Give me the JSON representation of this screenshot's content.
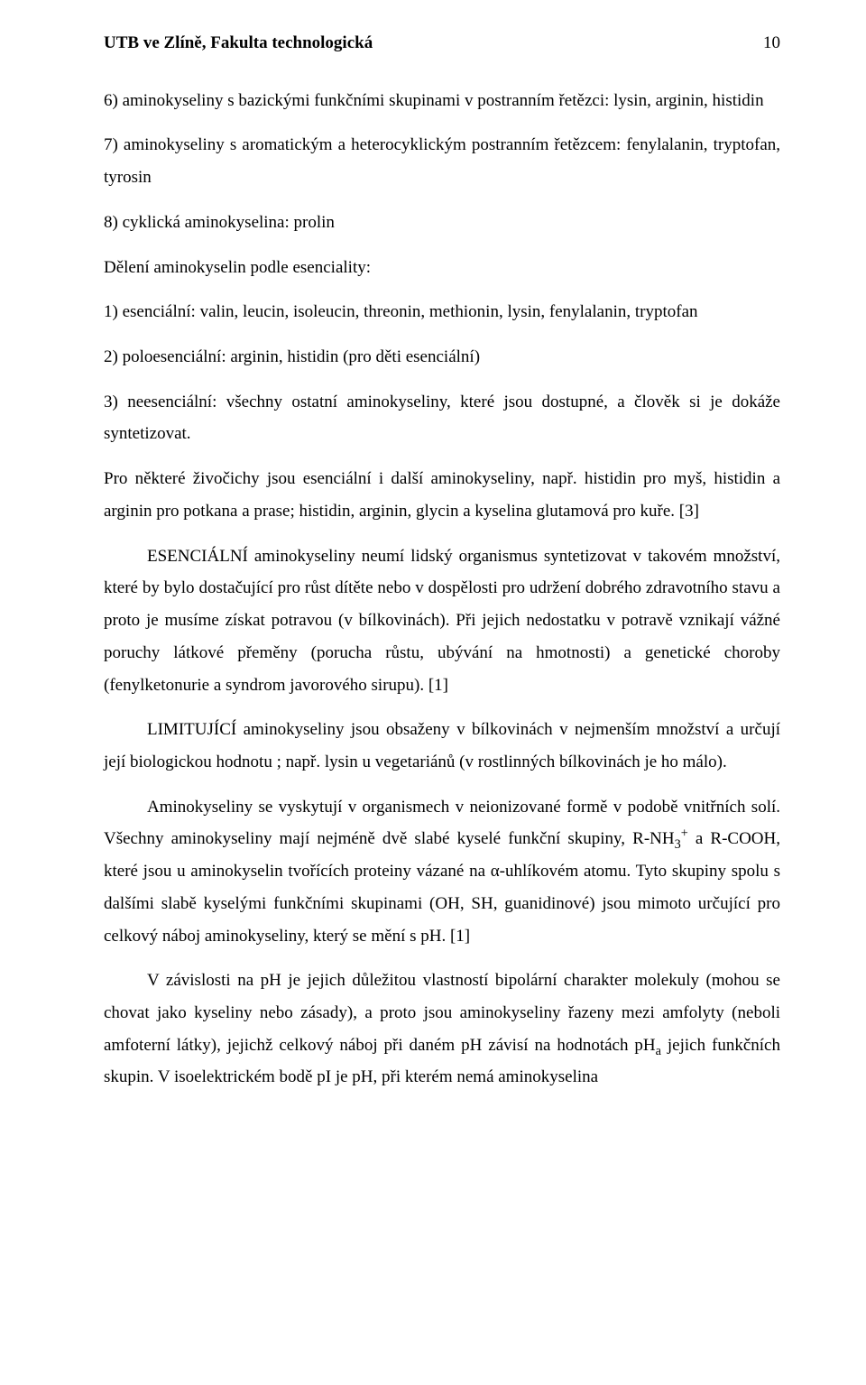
{
  "colors": {
    "text": "#000000",
    "background": "#ffffff"
  },
  "typography": {
    "font_family": "Times New Roman",
    "body_size_pt": 12,
    "header_weight": "bold",
    "line_height": 1.88
  },
  "header": {
    "title": "UTB ve Zlíně, Fakulta technologická",
    "page_number": "10"
  },
  "paragraphs": {
    "p1": "6) aminokyseliny s bazickými funkčními skupinami v postranním řetězci: lysin, arginin, histidin",
    "p2": "7) aminokyseliny s aromatickým a heterocyklickým postranním řetězcem: fenylalanin, tryptofan, tyrosin",
    "p3": "8) cyklická aminokyselina: prolin",
    "p4": "Dělení aminokyselin podle esenciality:",
    "p5": "1) esenciální: valin, leucin, isoleucin, threonin, methionin, lysin, fenylalanin, tryptofan",
    "p6": "2) poloesenciální: arginin, histidin (pro děti esenciální)",
    "p7": "3) neesenciální: všechny ostatní aminokyseliny, které jsou dostupné, a člověk si je dokáže syntetizovat.",
    "p8": "Pro některé živočichy jsou esenciální i další aminokyseliny, např. histidin pro myš, histidin a arginin pro potkana a prase; histidin, arginin, glycin a kyselina glutamová pro kuře. [3]",
    "p9": "ESENCIÁLNÍ aminokyseliny neumí lidský organismus syntetizovat v takovém množství, které by bylo dostačující pro růst dítěte nebo v dospělosti pro udržení dobrého zdravotního stavu a proto je musíme získat potravou (v bílkovinách). Při jejich nedostatku v potravě vznikají vážné poruchy látkové přeměny (porucha růstu, ubývání na hmotnosti) a genetické choroby (fenylketonurie a syndrom javorového sirupu). [1]",
    "p10": "LIMITUJÍCÍ aminokyseliny jsou obsaženy v bílkovinách v nejmenším množství a určují její biologickou hodnotu ; např. lysin u vegetariánů (v rostlinných bílkovinách je ho málo).",
    "p11a": "Aminokyseliny se vyskytují v organismech v neionizované formě v podobě vnitřních solí. Všechny aminokyseliny mají nejméně dvě slabé kyselé funkční skupiny, R-NH",
    "p11sub": "3",
    "p11sup": "+",
    "p11b": " a  R-COOH, které jsou u aminokyselin tvořících proteiny vázané na α-uhlíkovém atomu. Tyto skupiny spolu s dalšími slabě kyselými funkčními skupinami (OH, SH, guanidinové) jsou mimoto určující pro celkový náboj aminokyseliny, který se mění s pH. [1]",
    "p12a": "V závislosti na pH je jejich důležitou vlastností bipolární charakter molekuly (mohou se chovat jako kyseliny nebo zásady), a proto jsou aminokyseliny řazeny mezi amfolyty (neboli amfoterní látky), jejichž celkový náboj při daném pH závisí na hodnotách pH",
    "p12sub": "a",
    "p12b": " jejich funkčních skupin. V isoelektrickém bodě pI je pH, při kterém nemá aminokyselina"
  }
}
